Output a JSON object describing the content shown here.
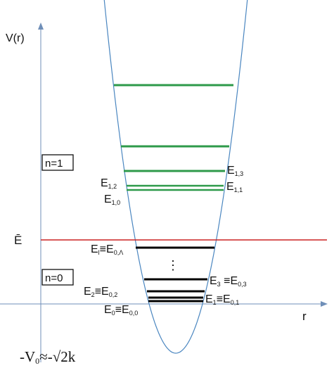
{
  "axes": {
    "y_label": "V(r)",
    "x_label": "r",
    "e_bar_label": "Ē",
    "v0_label_left": "-V",
    "v0_label_sub": "0",
    "v0_label_right": "≈-√2k"
  },
  "bands": {
    "n1": "n=1",
    "n0": "n=0"
  },
  "levels_n1": {
    "e13": {
      "main": "E",
      "sub": "1,3"
    },
    "e12": {
      "main": "E",
      "sub": "1,2"
    },
    "e11": {
      "main": "E",
      "sub": "1,1"
    },
    "e10": {
      "main": "E",
      "sub": "1,0"
    }
  },
  "levels_n0": {
    "el": {
      "left_main": "E",
      "left_sub": "l",
      "mid": "≡E",
      "right_sub": "0,Λ"
    },
    "e3": {
      "left_main": "E",
      "left_sub": "3",
      "mid": " ≡E",
      "right_sub": "0,3"
    },
    "e2": {
      "left_main": "E",
      "left_sub": "2",
      "mid": "≡E",
      "right_sub": "0,2"
    },
    "e1": {
      "left_main": "E",
      "left_sub": "1",
      "mid": "≡E",
      "right_sub": "0,1"
    },
    "e0": {
      "left_main": "E",
      "left_sub": "0",
      "mid": "≡E",
      "right_sub": "0,0"
    }
  },
  "ellipsis": "⋮",
  "colors": {
    "curve": "#4a86c0",
    "axis": "#6f8fb8",
    "ebar_line": "#cc2222",
    "green_levels": "#2e9a4a",
    "black_levels": "#000000"
  }
}
